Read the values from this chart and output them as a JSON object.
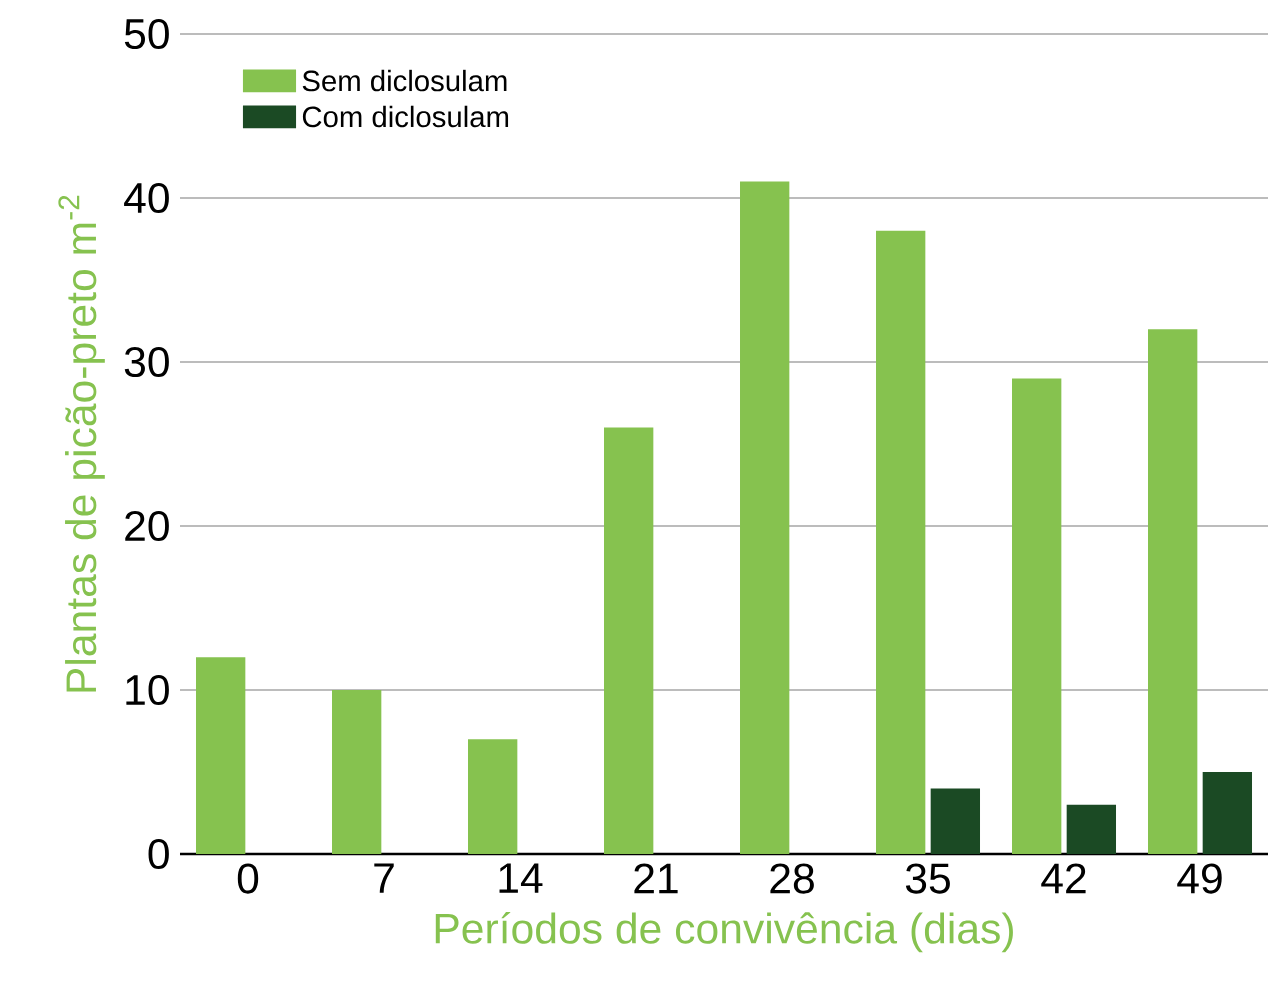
{
  "chart_data": {
    "type": "bar",
    "xlabel": "Períodos de convivência (dias)",
    "ylabel": "Plantas de picão-preto m$^{-2}$",
    "categories": [
      "0",
      "7",
      "14",
      "21",
      "28",
      "35",
      "42",
      "49"
    ],
    "series": [
      {
        "name": "Sem diclosulam",
        "color": "#86c24f",
        "values": [
          12,
          10,
          7,
          26,
          41,
          38,
          29,
          32
        ]
      },
      {
        "name": "Com diclosulam",
        "color": "#1b4a24",
        "values": [
          null,
          null,
          null,
          null,
          null,
          4,
          3,
          5
        ]
      }
    ],
    "ylim": [
      0,
      50
    ],
    "yticks": [
      0,
      10,
      20,
      30,
      40,
      50
    ],
    "grid": "y",
    "legend": "top left"
  }
}
